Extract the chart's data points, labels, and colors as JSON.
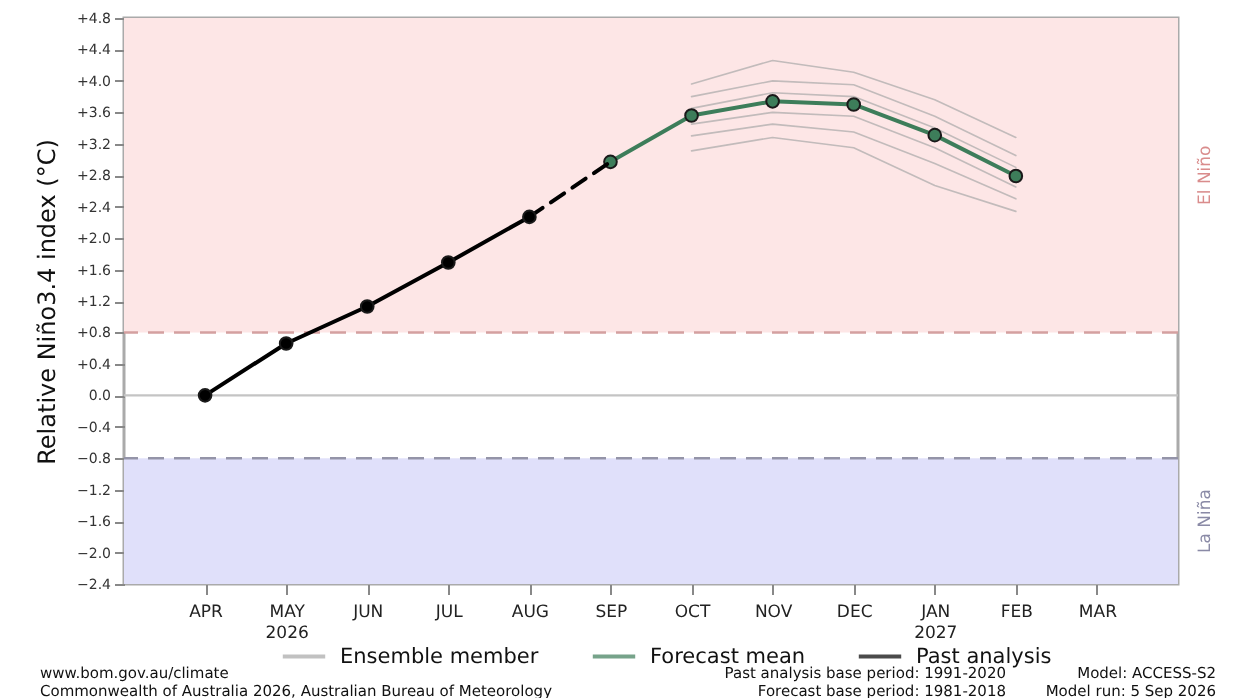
{
  "chart_data": {
    "type": "line",
    "ylabel": "Relative Niño3.4 index (°C)",
    "categories": [
      "APR",
      "MAY\n2026",
      "JUN",
      "JUL",
      "AUG",
      "SEP",
      "OCT",
      "NOV",
      "DEC",
      "JAN\n2027",
      "FEB",
      "MAR"
    ],
    "ylim": [
      -2.4,
      4.8
    ],
    "yticks": [
      {
        "value": -2.4,
        "label": "−2.4"
      },
      {
        "value": -2.0,
        "label": "−2.0"
      },
      {
        "value": -1.6,
        "label": "−1.6"
      },
      {
        "value": -1.2,
        "label": "−1.2"
      },
      {
        "value": -0.8,
        "label": "−0.8"
      },
      {
        "value": -0.4,
        "label": "−0.4"
      },
      {
        "value": 0,
        "label": "0.0"
      },
      {
        "value": 0.4,
        "label": "+0.4"
      },
      {
        "value": 0.8,
        "label": "+0.8"
      },
      {
        "value": 1.2,
        "label": "+1.2"
      },
      {
        "value": 1.6,
        "label": "+1.6"
      },
      {
        "value": 2.0,
        "label": "+2.0"
      },
      {
        "value": 2.4,
        "label": "+2.4"
      },
      {
        "value": 2.8,
        "label": "+2.8"
      },
      {
        "value": 3.2,
        "label": "+3.2"
      },
      {
        "value": 3.6,
        "label": "+3.6"
      },
      {
        "value": 4.0,
        "label": "+4.0"
      },
      {
        "value": 4.4,
        "label": "+4.4"
      },
      {
        "value": 4.8,
        "label": "+4.8"
      }
    ],
    "series": [
      {
        "name": "Ensemble member",
        "color": "#a8a8a8",
        "marker": "none",
        "values": [
          null,
          null,
          null,
          null,
          null,
          null,
          3.96,
          4.26,
          4.11,
          3.76,
          3.28,
          null
        ]
      },
      {
        "color": "#a8a8a8",
        "marker": "none",
        "values": [
          null,
          null,
          null,
          null,
          null,
          null,
          3.8,
          4.0,
          3.95,
          3.55,
          3.05,
          null
        ]
      },
      {
        "color": "#a8a8a8",
        "marker": "none",
        "values": [
          null,
          null,
          null,
          null,
          null,
          null,
          3.65,
          3.85,
          3.8,
          3.4,
          2.9,
          null
        ]
      },
      {
        "color": "#a8a8a8",
        "marker": "none",
        "values": [
          null,
          null,
          null,
          null,
          null,
          null,
          3.45,
          3.6,
          3.55,
          3.15,
          2.65,
          null
        ]
      },
      {
        "color": "#a8a8a8",
        "marker": "none",
        "values": [
          null,
          null,
          null,
          null,
          null,
          null,
          3.3,
          3.45,
          3.35,
          2.95,
          2.5,
          null
        ]
      },
      {
        "color": "#a8a8a8",
        "marker": "none",
        "values": [
          null,
          null,
          null,
          null,
          null,
          null,
          3.11,
          3.28,
          3.15,
          2.67,
          2.34,
          null
        ]
      },
      {
        "name": "Forecast mean",
        "color": "#3d7d5a",
        "values": [
          null,
          null,
          null,
          null,
          null,
          2.97,
          3.56,
          3.74,
          3.7,
          3.31,
          2.79,
          null
        ]
      },
      {
        "color": "#000000",
        "marker": "none",
        "line_style": "dashed",
        "values": [
          null,
          null,
          null,
          null,
          2.27,
          2.97,
          null,
          null,
          null,
          null,
          null,
          null
        ]
      },
      {
        "name": "Past analysis",
        "color": "#000000",
        "values": [
          0,
          0.66,
          1.13,
          1.69,
          2.27,
          null,
          null,
          null,
          null,
          null,
          null,
          null
        ]
      }
    ],
    "marker": "circle",
    "line_style": "solid",
    "grid": false,
    "legend": "bottom",
    "bands": [
      {
        "axis": "y",
        "from": 0.8,
        "to": 4.8,
        "label": "El Niño",
        "color": "#fde6e6"
      },
      {
        "axis": "y",
        "from": -2.4,
        "to": -0.8,
        "label": "La Niña",
        "color": "#e0e0fa"
      }
    ],
    "ref_lines": [
      {
        "axis": "y",
        "value": 0.8,
        "color": "#d4a0a0",
        "line_style": "dashed"
      },
      {
        "axis": "y",
        "value": -0.8,
        "color": "#9494a8",
        "line_style": "dashed"
      },
      {
        "axis": "y",
        "value": 0,
        "color": "#c4c4c4",
        "line_style": "solid"
      }
    ],
    "annotations": [
      "www.bom.gov.au/climate",
      "Commonwealth of Australia 2026, Australian Bureau of Meteorology",
      "Past analysis base period: 1991-2020",
      "Forecast base period: 1981-2018",
      "Model: ACCESS-S2",
      "Model run: 5 Sep 2026"
    ]
  }
}
